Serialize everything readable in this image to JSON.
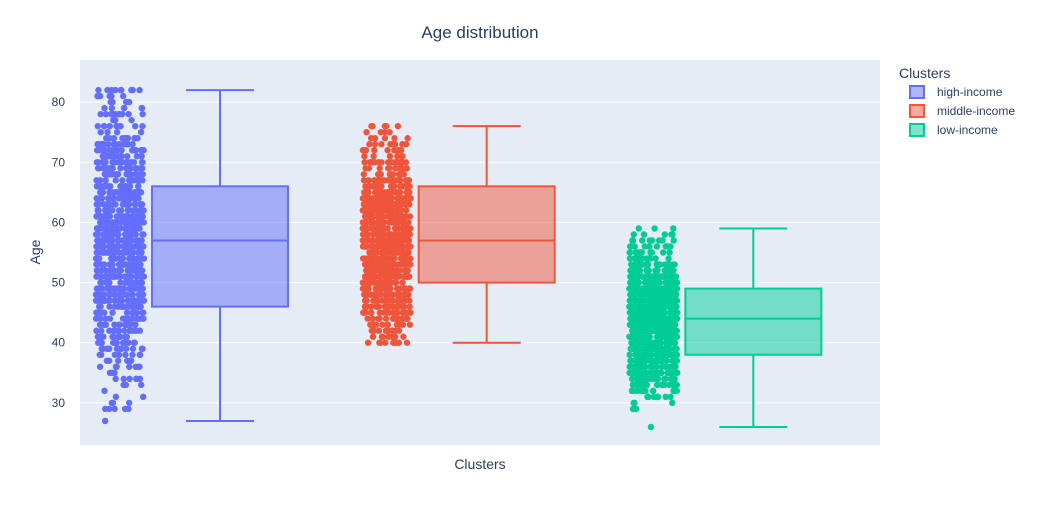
{
  "chart_data": {
    "type": "box",
    "title": "Age distribution",
    "xlabel": "Clusters",
    "ylabel": "Age",
    "ylim": [
      23,
      87
    ],
    "yticks": [
      30,
      40,
      50,
      60,
      70,
      80
    ],
    "grid": true,
    "legend": {
      "title": "Clusters",
      "placement": "top-right"
    },
    "boxpoints": "all",
    "series": [
      {
        "name": "high-income",
        "color": "#636efa",
        "min": 27,
        "q1": 46,
        "median": 57,
        "q3": 66,
        "max": 82,
        "points_range": [
          27,
          82
        ]
      },
      {
        "name": "middle-income",
        "color": "#ef553b",
        "min": 40,
        "q1": 50,
        "median": 57,
        "q3": 66,
        "max": 76,
        "points_range": [
          40,
          76
        ]
      },
      {
        "name": "low-income",
        "color": "#00cc96",
        "min": 26,
        "q1": 38,
        "median": 44,
        "q3": 49,
        "max": 59,
        "points_range": [
          26,
          59
        ]
      }
    ]
  }
}
